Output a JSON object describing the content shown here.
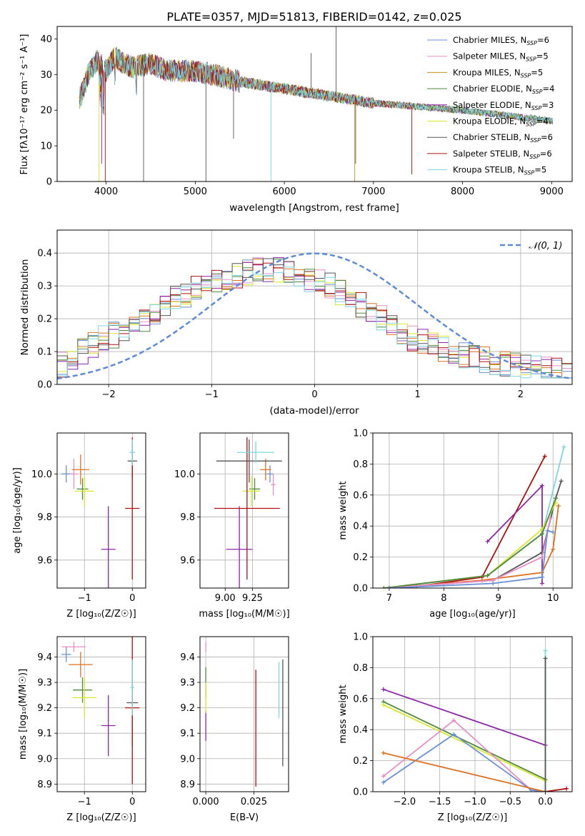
{
  "colors": {
    "chabrier_miles": "#6a8fd8",
    "salpeter_miles": "#e88ec8",
    "kroupa_miles": "#c8911b",
    "chabrier_elodie": "#4e8a3f",
    "salpeter_elodie": "#8e24aa",
    "kroupa_elodie": "#d8e82a",
    "chabrier_stelib": "#555555",
    "salpeter_stelib": "#b01010",
    "kroupa_stelib": "#7ad8e0",
    "normal": "#5b8bd9",
    "orange": "#e07020",
    "lime": "#b8e020"
  },
  "chart_data": [
    {
      "type": "line",
      "title": "PLATE=0357, MJD=51813, FIBERID=0142, z=0.025",
      "xlabel": "wavelength [Angstrom, rest frame]",
      "ylabel": "Flux [fλ10⁻¹⁷ erg cm⁻² s⁻¹ A⁻¹]",
      "xlim": [
        3450,
        9230
      ],
      "ylim": [
        0,
        43.5
      ],
      "xticks": [
        "4000",
        "5000",
        "6000",
        "7000",
        "8000",
        "9000"
      ],
      "yticks": [
        "0",
        "10",
        "20",
        "30",
        "40"
      ],
      "legend_position": "top-right",
      "legend": [
        {
          "label": "Chabrier MILES, N",
          "sub": "SSP",
          "n": "=6"
        },
        {
          "label": "Salpeter MILES, N",
          "sub": "SSP",
          "n": "=5"
        },
        {
          "label": "Kroupa MILES, N",
          "sub": "SSP",
          "n": "=5"
        },
        {
          "label": "Chabrier ELODIE, N",
          "sub": "SSP",
          "n": "=4"
        },
        {
          "label": "Salpeter ELODIE, N",
          "sub": "SSP",
          "n": "=3"
        },
        {
          "label": "Kroupa ELODIE, N",
          "sub": "SSP",
          "n": "=4"
        },
        {
          "label": "Chabrier STELIB, N",
          "sub": "SSP",
          "n": "=6"
        },
        {
          "label": "Salpeter STELIB, N",
          "sub": "SSP",
          "n": "=6"
        },
        {
          "label": "Kroupa STELIB, N",
          "sub": "SSP",
          "n": "=5"
        }
      ],
      "continuum": [
        [
          3700,
          23
        ],
        [
          3800,
          30
        ],
        [
          3900,
          34
        ],
        [
          4000,
          31
        ],
        [
          4100,
          35
        ],
        [
          4200,
          33
        ],
        [
          4300,
          32
        ],
        [
          4500,
          33
        ],
        [
          4700,
          31
        ],
        [
          5000,
          31
        ],
        [
          5200,
          30
        ],
        [
          5500,
          28
        ],
        [
          6000,
          26
        ],
        [
          6500,
          24
        ],
        [
          7000,
          22
        ],
        [
          7500,
          21
        ],
        [
          8000,
          20
        ],
        [
          8500,
          18.5
        ],
        [
          9000,
          17
        ]
      ]
    },
    {
      "type": "step",
      "xlabel": "(data-model)/error",
      "ylabel": "Normed distribution",
      "xlim": [
        -2.5,
        2.5
      ],
      "ylim": [
        0,
        0.47
      ],
      "xticks": [
        "−2",
        "−1",
        "0",
        "1",
        "2"
      ],
      "yticks": [
        "0.0",
        "0.1",
        "0.2",
        "0.3",
        "0.4"
      ],
      "legend_position": "top-right",
      "legend": [
        {
          "label": "𝒩(0, 1)"
        }
      ],
      "bins": 50,
      "hist_mean": [
        0.06,
        0.08,
        0.1,
        0.12,
        0.14,
        0.15,
        0.17,
        0.18,
        0.2,
        0.22,
        0.24,
        0.26,
        0.27,
        0.29,
        0.3,
        0.31,
        0.32,
        0.33,
        0.34,
        0.35,
        0.35,
        0.35,
        0.34,
        0.33,
        0.32,
        0.31,
        0.3,
        0.28,
        0.26,
        0.24,
        0.22,
        0.2,
        0.18,
        0.16,
        0.14,
        0.13,
        0.12,
        0.11,
        0.1,
        0.09,
        0.08,
        0.075,
        0.07,
        0.065,
        0.06,
        0.055,
        0.05,
        0.045,
        0.04,
        0.035
      ]
    },
    {
      "type": "scatter",
      "xlabel": "Z [log₁₀(Z/Z☉)]",
      "ylabel": "age  [log₁₀(age/yr)]",
      "xlim": [
        -1.57,
        0.28
      ],
      "ylim": [
        9.47,
        10.19
      ],
      "xticks": [
        "−1",
        "0"
      ],
      "yticks": [
        "9.6",
        "9.8",
        "10.0"
      ],
      "points": [
        {
          "x": -1.38,
          "y": 10.0,
          "xe": 0.1,
          "ye": 0.04,
          "c": "chabrier_miles"
        },
        {
          "x": -1.22,
          "y": 10.0,
          "xe": 0.08,
          "ye": 0.07,
          "c": "salpeter_miles"
        },
        {
          "x": -1.08,
          "y": 10.02,
          "xe": 0.18,
          "ye": 0.07,
          "c": "orange"
        },
        {
          "x": -1.04,
          "y": 9.93,
          "xe": 0.12,
          "ye": 0.05,
          "c": "chabrier_elodie"
        },
        {
          "x": -1.0,
          "y": 9.92,
          "xe": 0.2,
          "ye": 0.07,
          "c": "kroupa_elodie"
        },
        {
          "x": -0.5,
          "y": 9.65,
          "xe": 0.15,
          "ye": 0.2,
          "c": "salpeter_elodie"
        },
        {
          "x": 0.0,
          "y": 10.06,
          "xe": 0.1,
          "ye": 0.08,
          "c": "chabrier_stelib"
        },
        {
          "x": 0.0,
          "y": 9.84,
          "xe": 0.15,
          "ye": 0.33,
          "c": "salpeter_stelib"
        },
        {
          "x": 0.0,
          "y": 10.1,
          "xe": 0.06,
          "ye": 0.06,
          "c": "kroupa_stelib"
        }
      ]
    },
    {
      "type": "scatter",
      "xlabel": "mass [log₁₀(M/M☉)]",
      "ylabel": "",
      "xlim": [
        8.77,
        9.58
      ],
      "ylim": [
        9.47,
        10.19
      ],
      "xticks": [
        "9.00",
        "9.25"
      ],
      "yticks": [
        "9.6",
        "9.8",
        "10.0"
      ],
      "points": [
        {
          "x": 9.41,
          "y": 10.0,
          "xe": 0.03,
          "ye": 0.04,
          "c": "chabrier_miles"
        },
        {
          "x": 9.44,
          "y": 9.95,
          "xe": 0.02,
          "ye": 0.05,
          "c": "salpeter_miles"
        },
        {
          "x": 9.37,
          "y": 10.02,
          "xe": 0.05,
          "ye": 0.05,
          "c": "orange"
        },
        {
          "x": 9.27,
          "y": 9.93,
          "xe": 0.05,
          "ye": 0.05,
          "c": "chabrier_elodie"
        },
        {
          "x": 9.24,
          "y": 9.92,
          "xe": 0.08,
          "ye": 0.07,
          "c": "kroupa_elodie"
        },
        {
          "x": 9.13,
          "y": 9.65,
          "xe": 0.12,
          "ye": 0.2,
          "c": "salpeter_elodie"
        },
        {
          "x": 9.22,
          "y": 10.06,
          "xe": 0.3,
          "ye": 0.1,
          "c": "chabrier_stelib"
        },
        {
          "x": 9.2,
          "y": 9.84,
          "xe": 0.3,
          "ye": 0.33,
          "c": "salpeter_stelib"
        },
        {
          "x": 9.28,
          "y": 10.1,
          "xe": 0.17,
          "ye": 0.05,
          "c": "kroupa_stelib"
        }
      ]
    },
    {
      "type": "line",
      "xlabel": "age  [log₁₀(age/yr)]",
      "ylabel": "mass weight",
      "xlim": [
        6.7,
        10.35
      ],
      "ylim": [
        0,
        1.0
      ],
      "xticks": [
        "7",
        "8",
        "9",
        "10"
      ],
      "yticks": [
        "0.0",
        "0.2",
        "0.4",
        "0.6",
        "0.8",
        "1.0"
      ],
      "series": [
        {
          "c": "kroupa_stelib",
          "pts": [
            [
              7.0,
              0.0
            ],
            [
              8.8,
              0.08
            ],
            [
              9.8,
              0.35
            ],
            [
              10.2,
              0.91
            ]
          ]
        },
        {
          "c": "salpeter_stelib",
          "pts": [
            [
              7.5,
              0.01
            ],
            [
              8.7,
              0.07
            ],
            [
              9.85,
              0.85
            ]
          ]
        },
        {
          "c": "salpeter_elodie",
          "pts": [
            [
              8.8,
              0.3
            ],
            [
              9.8,
              0.66
            ],
            [
              9.8,
              0.03
            ]
          ]
        },
        {
          "c": "chabrier_stelib",
          "pts": [
            [
              7.0,
              0.0
            ],
            [
              8.9,
              0.05
            ],
            [
              9.8,
              0.23
            ],
            [
              10.05,
              0.58
            ],
            [
              10.15,
              0.69
            ]
          ]
        },
        {
          "c": "kroupa_elodie",
          "pts": [
            [
              6.9,
              0.0
            ],
            [
              8.8,
              0.08
            ],
            [
              9.8,
              0.38
            ],
            [
              10.05,
              0.55
            ]
          ]
        },
        {
          "c": "chabrier_elodie",
          "pts": [
            [
              6.9,
              0.0
            ],
            [
              8.8,
              0.08
            ],
            [
              9.8,
              0.35
            ],
            [
              10.05,
              0.58
            ]
          ]
        },
        {
          "c": "orange",
          "pts": [
            [
              7.0,
              0.0
            ],
            [
              8.7,
              0.05
            ],
            [
              9.8,
              0.1
            ],
            [
              10.0,
              0.25
            ],
            [
              10.1,
              0.53
            ]
          ]
        },
        {
          "c": "salpeter_miles",
          "pts": [
            [
              7.0,
              0.0
            ],
            [
              8.9,
              0.05
            ],
            [
              9.8,
              0.2
            ],
            [
              9.95,
              0.45
            ]
          ]
        },
        {
          "c": "chabrier_miles",
          "pts": [
            [
              7.0,
              0.0
            ],
            [
              8.9,
              0.03
            ],
            [
              9.8,
              0.07
            ],
            [
              9.9,
              0.37
            ],
            [
              10.0,
              0.36
            ]
          ]
        }
      ]
    },
    {
      "type": "scatter",
      "xlabel": "Z [log₁₀(Z/Z☉)]",
      "ylabel": "mass [log₁₀(M/M☉)]",
      "xlim": [
        -1.57,
        0.28
      ],
      "ylim": [
        8.87,
        9.48
      ],
      "xticks": [
        "−1",
        "0"
      ],
      "yticks": [
        "8.9",
        "9.0",
        "9.1",
        "9.2",
        "9.3",
        "9.4"
      ],
      "points": [
        {
          "x": -1.38,
          "y": 9.41,
          "xe": 0.1,
          "ye": 0.03,
          "c": "chabrier_miles"
        },
        {
          "x": -1.22,
          "y": 9.44,
          "xe": 0.25,
          "ye": 0.02,
          "c": "salpeter_miles"
        },
        {
          "x": -1.08,
          "y": 9.37,
          "xe": 0.25,
          "ye": 0.05,
          "c": "orange"
        },
        {
          "x": -1.04,
          "y": 9.27,
          "xe": 0.2,
          "ye": 0.05,
          "c": "chabrier_elodie"
        },
        {
          "x": -1.0,
          "y": 9.24,
          "xe": 0.25,
          "ye": 0.08,
          "c": "kroupa_elodie"
        },
        {
          "x": -0.5,
          "y": 9.13,
          "xe": 0.15,
          "ye": 0.12,
          "c": "salpeter_elodie"
        },
        {
          "x": 0.0,
          "y": 9.22,
          "xe": 0.12,
          "ye": 0.17,
          "c": "chabrier_stelib"
        },
        {
          "x": 0.0,
          "y": 9.2,
          "xe": 0.15,
          "ye": 0.3,
          "c": "salpeter_stelib"
        },
        {
          "x": 0.0,
          "y": 9.28,
          "xe": 0.04,
          "ye": 0.11,
          "c": "kroupa_stelib"
        }
      ]
    },
    {
      "type": "errorbar",
      "xlabel": "E(B-V)",
      "ylabel": "",
      "xlim": [
        -0.003,
        0.043
      ],
      "ylim": [
        8.87,
        9.48
      ],
      "xticks": [
        "0.000",
        "0.025"
      ],
      "yticks": [
        "8.9",
        "9.0",
        "9.1",
        "9.2",
        "9.3",
        "9.4"
      ],
      "points": [
        {
          "x": 0.0,
          "y": 9.44,
          "ye": 0.02,
          "c": "salpeter_miles"
        },
        {
          "x": 0.0,
          "y": 9.13,
          "ye": 0.06,
          "c": "salpeter_elodie"
        },
        {
          "x": 0.0,
          "y": 9.3,
          "ye": 0.06,
          "c": "chabrier_elodie"
        },
        {
          "x": 0.0,
          "y": 9.24,
          "ye": 0.06,
          "c": "kroupa_elodie"
        },
        {
          "x": 0.026,
          "y": 9.12,
          "ye": 0.23,
          "c": "salpeter_stelib"
        },
        {
          "x": 0.038,
          "y": 9.27,
          "ye": 0.11,
          "c": "kroupa_stelib"
        },
        {
          "x": 0.04,
          "y": 9.18,
          "ye": 0.21,
          "c": "chabrier_stelib"
        }
      ]
    },
    {
      "type": "line",
      "xlabel": "Z [log₁₀(Z/Z☉)]",
      "ylabel": "mass weight",
      "xlim": [
        -2.45,
        0.38
      ],
      "ylim": [
        0,
        1.0
      ],
      "xticks": [
        "−2.0",
        "−1.5",
        "−1.0",
        "−0.5",
        "0.0"
      ],
      "yticks": [
        "0.0",
        "0.2",
        "0.4",
        "0.6",
        "0.8",
        "1.0"
      ],
      "series": [
        {
          "c": "salpeter_elodie",
          "pts": [
            [
              -2.3,
              0.66
            ],
            [
              0.0,
              0.3
            ]
          ]
        },
        {
          "c": "chabrier_elodie",
          "pts": [
            [
              -2.3,
              0.58
            ],
            [
              0.0,
              0.08
            ]
          ]
        },
        {
          "c": "kroupa_elodie",
          "pts": [
            [
              -2.3,
              0.56
            ],
            [
              0.0,
              0.07
            ]
          ]
        },
        {
          "c": "salpeter_miles",
          "pts": [
            [
              -2.3,
              0.1
            ],
            [
              -1.3,
              0.46
            ],
            [
              -0.2,
              0.01
            ],
            [
              0.0,
              0.0
            ]
          ]
        },
        {
          "c": "chabrier_miles",
          "pts": [
            [
              -2.3,
              0.06
            ],
            [
              -1.3,
              0.37
            ],
            [
              -0.2,
              0.01
            ],
            [
              0.0,
              0.0
            ]
          ]
        },
        {
          "c": "orange",
          "pts": [
            [
              -2.3,
              0.25
            ],
            [
              0.0,
              0.0
            ]
          ]
        },
        {
          "c": "salpeter_stelib",
          "pts": [
            [
              0.0,
              0.0
            ],
            [
              0.3,
              0.02
            ]
          ]
        },
        {
          "c": "kroupa_stelib",
          "pts": [
            [
              0.0,
              0.0
            ],
            [
              0.0,
              0.91
            ]
          ]
        },
        {
          "c": "chabrier_stelib",
          "pts": [
            [
              0.0,
              0.0
            ],
            [
              0.0,
              0.86
            ]
          ]
        }
      ]
    }
  ]
}
